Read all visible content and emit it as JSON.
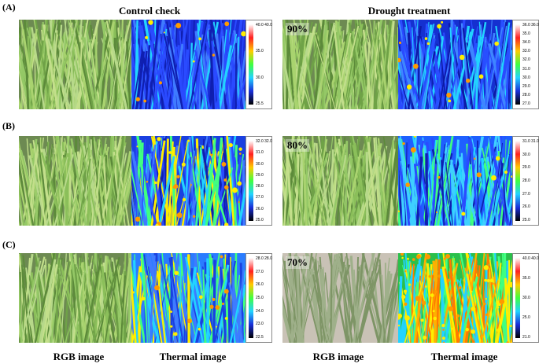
{
  "headers": {
    "control": "Control check",
    "drought": "Drought treatment"
  },
  "footer": {
    "rgb_left": "RGB image",
    "thermal_left": "Thermal image",
    "rgb_right": "RGB image",
    "thermal_right": "Thermal image"
  },
  "rows": [
    {
      "label": "(A)",
      "percent": "90%",
      "ctrl_scale": [
        "40.0 40.0",
        "35.0",
        "30.0",
        "25.5"
      ],
      "drought_scale": [
        "36.0 36.0",
        "35.0",
        "34.0",
        "33.0",
        "32.0",
        "31.0",
        "30.0",
        "29.0",
        "28.0",
        "27.0"
      ]
    },
    {
      "label": "(B)",
      "percent": "80%",
      "ctrl_scale": [
        "32.0 32.0",
        "31.0",
        "30.0",
        "29.0",
        "28.0",
        "27.0",
        "26.0",
        "25.0"
      ],
      "drought_scale": [
        "31.0 31.0",
        "30.0",
        "29.0",
        "28.0",
        "27.0",
        "26.0",
        "25.0"
      ]
    },
    {
      "label": "(C)",
      "percent": "70%",
      "ctrl_scale": [
        "28.0 28.0",
        "27.0",
        "26.0",
        "25.0",
        "24.0",
        "23.0",
        "22.5"
      ],
      "drought_scale": [
        "40.0 40.0",
        "35.0",
        "30.0",
        "25.0",
        "21.0"
      ]
    }
  ]
}
